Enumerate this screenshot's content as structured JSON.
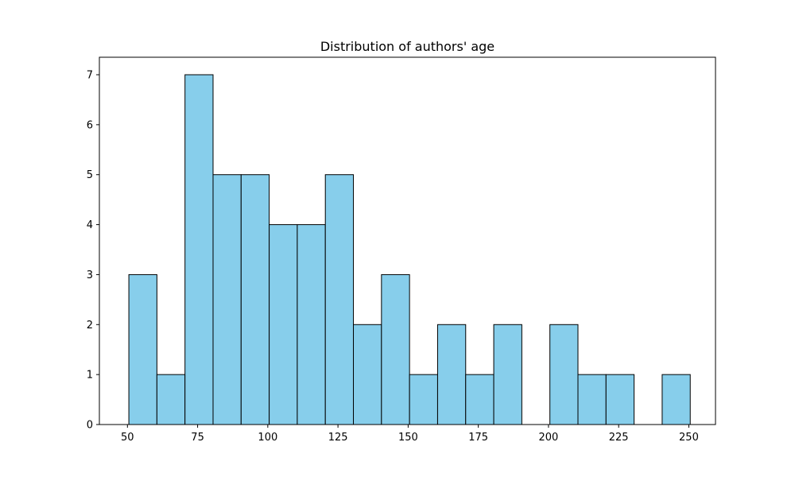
{
  "chart_data": {
    "type": "bar",
    "title": "Distribution of authors' age",
    "xlabel": "",
    "ylabel": "",
    "x_domain": [
      40,
      259.5
    ],
    "ylim": [
      0,
      7.35
    ],
    "bins": [
      {
        "start": 50.5,
        "end": 60.5,
        "count": 3
      },
      {
        "start": 60.5,
        "end": 70.5,
        "count": 1
      },
      {
        "start": 70.5,
        "end": 80.5,
        "count": 7
      },
      {
        "start": 80.5,
        "end": 90.5,
        "count": 5
      },
      {
        "start": 90.5,
        "end": 100.5,
        "count": 5
      },
      {
        "start": 100.5,
        "end": 110.5,
        "count": 4
      },
      {
        "start": 110.5,
        "end": 120.5,
        "count": 4
      },
      {
        "start": 120.5,
        "end": 130.5,
        "count": 5
      },
      {
        "start": 130.5,
        "end": 140.5,
        "count": 2
      },
      {
        "start": 140.5,
        "end": 150.5,
        "count": 3
      },
      {
        "start": 150.5,
        "end": 160.5,
        "count": 1
      },
      {
        "start": 160.5,
        "end": 170.5,
        "count": 2
      },
      {
        "start": 170.5,
        "end": 180.5,
        "count": 1
      },
      {
        "start": 180.5,
        "end": 190.5,
        "count": 2
      },
      {
        "start": 190.5,
        "end": 200.5,
        "count": 0
      },
      {
        "start": 200.5,
        "end": 210.5,
        "count": 2
      },
      {
        "start": 210.5,
        "end": 220.5,
        "count": 1
      },
      {
        "start": 220.5,
        "end": 230.5,
        "count": 1
      },
      {
        "start": 230.5,
        "end": 240.5,
        "count": 0
      },
      {
        "start": 240.5,
        "end": 250.5,
        "count": 1
      }
    ],
    "x_ticks": [
      50,
      75,
      100,
      125,
      150,
      175,
      200,
      225,
      250
    ],
    "x_tick_labels": [
      "50",
      "75",
      "100",
      "125",
      "150",
      "175",
      "200",
      "225",
      "250"
    ],
    "y_ticks": [
      0,
      1,
      2,
      3,
      4,
      5,
      6,
      7
    ],
    "y_tick_labels": [
      "0",
      "1",
      "2",
      "3",
      "4",
      "5",
      "6",
      "7"
    ],
    "grid": false,
    "legend": "none",
    "colors": {
      "bar_fill": "#87CEEB",
      "bar_edge": "#000000",
      "axes": "#000000",
      "background": "#ffffff"
    }
  }
}
